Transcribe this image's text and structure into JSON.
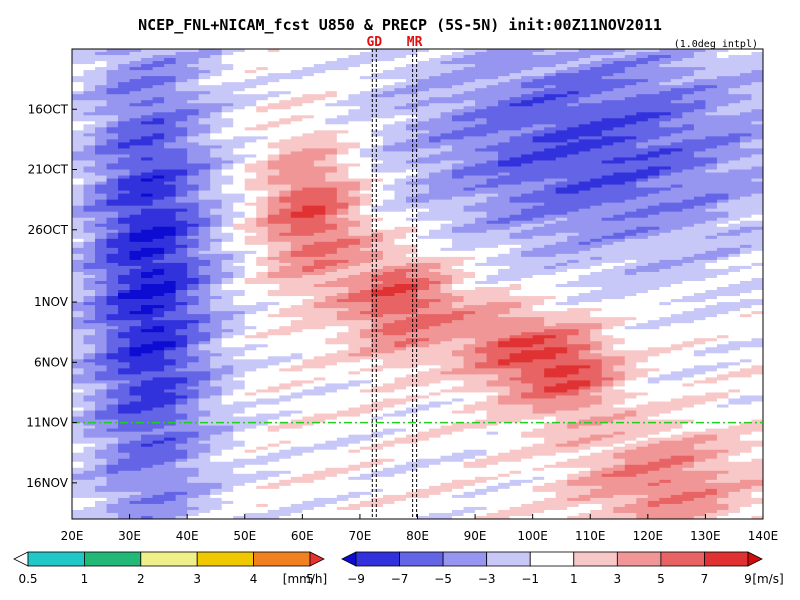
{
  "chart_data": {
    "type": "heatmap",
    "title": "NCEP_FNL+NICAM_fcst U850 & PRECP (5S-5N) init:00Z11NOV2011",
    "subtitle": "(1.0deg intpl)",
    "x_axis": {
      "range": [
        20,
        140
      ],
      "ticks": [
        20,
        30,
        40,
        50,
        60,
        70,
        80,
        90,
        100,
        110,
        120,
        130,
        140
      ],
      "tick_labels": [
        "20E",
        "30E",
        "40E",
        "50E",
        "60E",
        "70E",
        "80E",
        "90E",
        "100E",
        "110E",
        "120E",
        "130E",
        "140E"
      ]
    },
    "y_axis": {
      "range": [
        "2011-10-11",
        "2011-11-19"
      ],
      "ticks": [
        "2011-10-16",
        "2011-10-21",
        "2011-10-26",
        "2011-11-01",
        "2011-11-06",
        "2011-11-11",
        "2011-11-16"
      ],
      "tick_labels": [
        "16OCT",
        "21OCT",
        "26OCT",
        "1NOV",
        "6NOV",
        "11NOV",
        "16NOV"
      ]
    },
    "markers": [
      {
        "label": "GD",
        "lon": 72.5
      },
      {
        "label": "MR",
        "lon": 79.5
      }
    ],
    "init_line": {
      "date": "2011-11-11",
      "color": "#22cc22",
      "style": "dashed"
    },
    "precip_colorbar": {
      "unit": "[mm/h]",
      "levels": [
        "0.5",
        "1",
        "2",
        "3",
        "4",
        "5"
      ],
      "colors": [
        "#ffffff",
        "#22c8c8",
        "#22b878",
        "#f0f08a",
        "#f0c800",
        "#f08020",
        "#e83232"
      ]
    },
    "u850_colorbar": {
      "unit": "[m/s]",
      "levels": [
        "−9",
        "−7",
        "−5",
        "−3",
        "−1",
        "1",
        "3",
        "5",
        "7",
        "9"
      ],
      "colors": [
        "#0c0cd2",
        "#3232dc",
        "#6464e6",
        "#9696f0",
        "#c8c8f8",
        "#ffffff",
        "#f8c8c8",
        "#f09696",
        "#e86464",
        "#e03232",
        "#d20c0c"
      ]
    },
    "features": [
      {
        "type": "westerly",
        "lon": [
          55,
          68
        ],
        "date": [
          "2011-10-20",
          "2011-10-29"
        ],
        "peak": 7
      },
      {
        "type": "westerly",
        "lon": [
          70,
          85
        ],
        "date": [
          "2011-10-29",
          "2011-11-04"
        ],
        "peak": 7
      },
      {
        "type": "westerly",
        "lon": [
          90,
          100
        ],
        "date": [
          "2011-11-02",
          "2011-11-07"
        ],
        "peak": 5
      },
      {
        "type": "westerly",
        "lon": [
          100,
          112
        ],
        "date": [
          "2011-11-04",
          "2011-11-09"
        ],
        "peak": 7
      },
      {
        "type": "westerly",
        "lon": [
          110,
          135
        ],
        "date": [
          "2011-11-13",
          "2011-11-19"
        ],
        "peak": 5
      },
      {
        "type": "easterly",
        "lon": [
          80,
          140
        ],
        "date": [
          "2011-10-11",
          "2011-10-27"
        ],
        "peak": -7
      },
      {
        "type": "easterly",
        "lon": [
          25,
          42
        ],
        "date": [
          "2011-10-11",
          "2011-11-19"
        ],
        "peak": -9
      }
    ]
  }
}
